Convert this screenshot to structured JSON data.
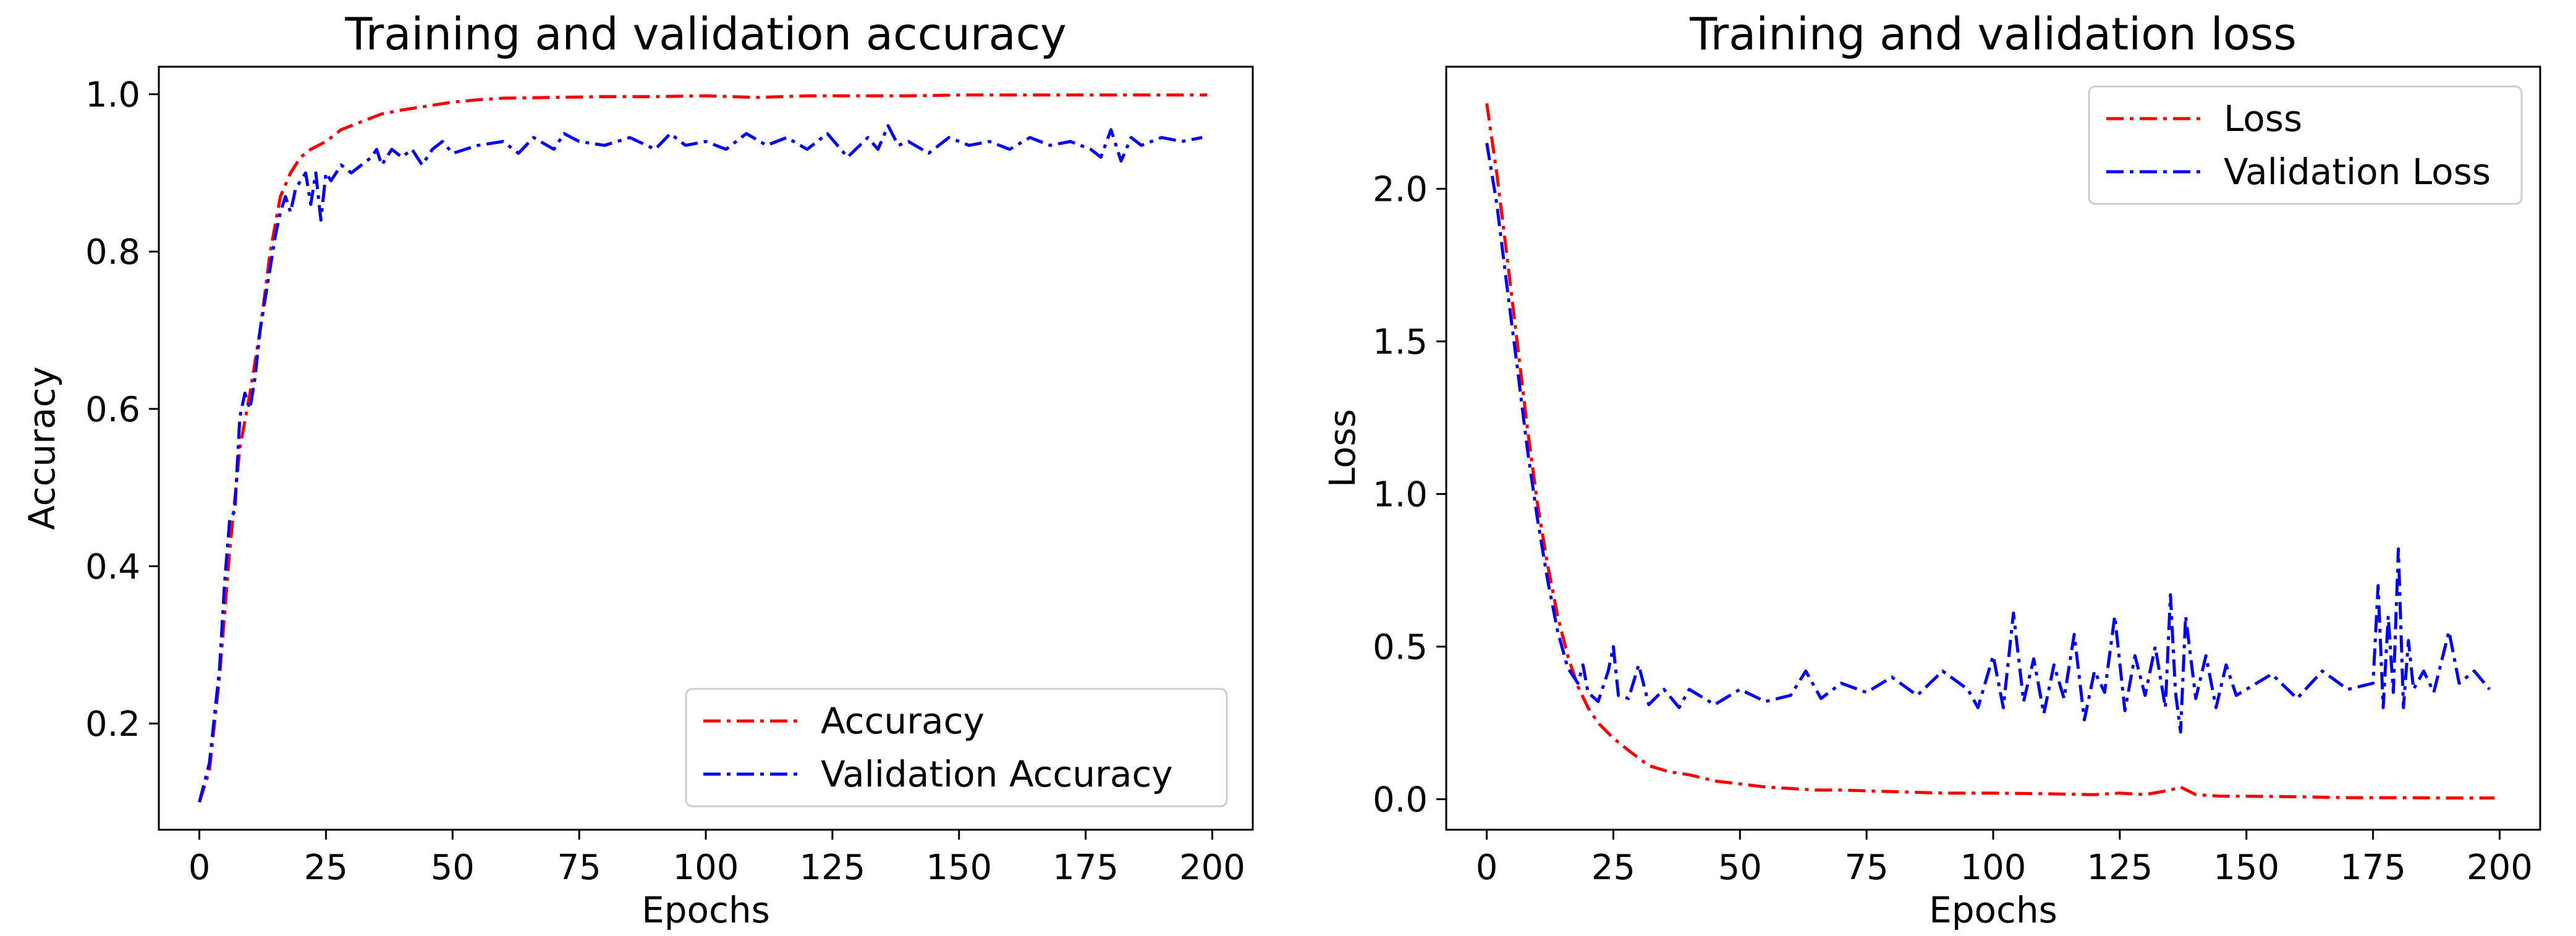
{
  "chart_data": [
    {
      "type": "line",
      "title": "Training and validation accuracy",
      "xlabel": "Epochs",
      "ylabel": "Accuracy",
      "xlim": [
        -8,
        208
      ],
      "ylim": [
        0.065,
        1.035
      ],
      "xticks": [
        0,
        25,
        50,
        75,
        100,
        125,
        150,
        175,
        200
      ],
      "xtick_labels": [
        "0",
        "25",
        "50",
        "75",
        "100",
        "125",
        "150",
        "175",
        "200"
      ],
      "yticks": [
        0.2,
        0.4,
        0.6,
        0.8,
        1.0
      ],
      "ytick_labels": [
        "0.2",
        "0.4",
        "0.6",
        "0.8",
        "1.0"
      ],
      "legend_position": "lower-right",
      "series": [
        {
          "name": "Accuracy",
          "color": "#ff0000",
          "style": "dashdot",
          "x": [
            0,
            2,
            4,
            6,
            8,
            10,
            12,
            14,
            16,
            18,
            20,
            22,
            25,
            28,
            32,
            36,
            40,
            45,
            50,
            55,
            60,
            70,
            80,
            90,
            100,
            110,
            120,
            130,
            140,
            150,
            160,
            170,
            180,
            190,
            199
          ],
          "y": [
            0.1,
            0.14,
            0.26,
            0.42,
            0.55,
            0.62,
            0.7,
            0.8,
            0.87,
            0.9,
            0.92,
            0.93,
            0.94,
            0.955,
            0.965,
            0.975,
            0.98,
            0.985,
            0.99,
            0.993,
            0.995,
            0.996,
            0.997,
            0.997,
            0.998,
            0.996,
            0.998,
            0.998,
            0.998,
            0.999,
            0.999,
            0.999,
            0.999,
            0.999,
            0.999
          ]
        },
        {
          "name": "Validation Accuracy",
          "color": "#0000ff",
          "style": "dashdot",
          "x": [
            0,
            2,
            4,
            5,
            6,
            7,
            8,
            9,
            10,
            11,
            12,
            13,
            14,
            15,
            16,
            17,
            18,
            19,
            20,
            21,
            22,
            23,
            24,
            25,
            26,
            28,
            30,
            32,
            34,
            35,
            36,
            38,
            40,
            42,
            44,
            46,
            48,
            50,
            55,
            60,
            63,
            66,
            70,
            72,
            75,
            80,
            85,
            90,
            93,
            96,
            100,
            104,
            108,
            112,
            116,
            120,
            124,
            128,
            132,
            134,
            136,
            138,
            140,
            144,
            148,
            152,
            156,
            160,
            164,
            168,
            172,
            176,
            178,
            180,
            182,
            184,
            186,
            190,
            194,
            198
          ],
          "y": [
            0.1,
            0.15,
            0.27,
            0.38,
            0.46,
            0.47,
            0.59,
            0.62,
            0.6,
            0.64,
            0.7,
            0.74,
            0.78,
            0.82,
            0.85,
            0.87,
            0.85,
            0.88,
            0.89,
            0.9,
            0.86,
            0.9,
            0.84,
            0.9,
            0.89,
            0.91,
            0.9,
            0.91,
            0.92,
            0.93,
            0.91,
            0.93,
            0.92,
            0.93,
            0.91,
            0.93,
            0.94,
            0.925,
            0.935,
            0.94,
            0.925,
            0.945,
            0.93,
            0.95,
            0.94,
            0.935,
            0.945,
            0.93,
            0.95,
            0.935,
            0.94,
            0.93,
            0.95,
            0.935,
            0.945,
            0.93,
            0.95,
            0.92,
            0.945,
            0.93,
            0.96,
            0.935,
            0.94,
            0.925,
            0.945,
            0.935,
            0.94,
            0.93,
            0.945,
            0.935,
            0.94,
            0.93,
            0.92,
            0.955,
            0.915,
            0.945,
            0.935,
            0.945,
            0.94,
            0.945
          ]
        }
      ]
    },
    {
      "type": "line",
      "title": "Training and validation loss",
      "xlabel": "Epochs",
      "ylabel": "Loss",
      "xlim": [
        -8,
        208
      ],
      "ylim": [
        -0.1,
        2.4
      ],
      "xticks": [
        0,
        25,
        50,
        75,
        100,
        125,
        150,
        175,
        200
      ],
      "xtick_labels": [
        "0",
        "25",
        "50",
        "75",
        "100",
        "125",
        "150",
        "175",
        "200"
      ],
      "yticks": [
        0.0,
        0.5,
        1.0,
        1.5,
        2.0
      ],
      "ytick_labels": [
        "0.0",
        "0.5",
        "1.0",
        "1.5",
        "2.0"
      ],
      "legend_position": "upper-right",
      "series": [
        {
          "name": "Loss",
          "color": "#ff0000",
          "style": "dashdot",
          "x": [
            0,
            2,
            4,
            6,
            8,
            10,
            12,
            14,
            16,
            18,
            20,
            22,
            25,
            28,
            32,
            36,
            40,
            45,
            50,
            55,
            60,
            65,
            70,
            80,
            90,
            100,
            110,
            120,
            125,
            130,
            135,
            137,
            140,
            145,
            150,
            160,
            170,
            180,
            190,
            199
          ],
          "y": [
            2.28,
            2.05,
            1.78,
            1.5,
            1.22,
            0.97,
            0.77,
            0.6,
            0.47,
            0.37,
            0.3,
            0.25,
            0.2,
            0.16,
            0.11,
            0.09,
            0.08,
            0.06,
            0.05,
            0.04,
            0.035,
            0.03,
            0.03,
            0.025,
            0.02,
            0.02,
            0.018,
            0.015,
            0.02,
            0.015,
            0.03,
            0.04,
            0.015,
            0.01,
            0.01,
            0.008,
            0.005,
            0.005,
            0.004,
            0.004
          ]
        },
        {
          "name": "Validation Loss",
          "color": "#0000ff",
          "style": "dashdot",
          "x": [
            0,
            2,
            4,
            6,
            8,
            10,
            12,
            14,
            16,
            18,
            19,
            20,
            22,
            24,
            25,
            26,
            28,
            30,
            32,
            35,
            38,
            40,
            45,
            50,
            55,
            60,
            63,
            66,
            70,
            75,
            80,
            85,
            90,
            95,
            97,
            100,
            102,
            104,
            106,
            108,
            110,
            112,
            114,
            116,
            118,
            120,
            122,
            124,
            126,
            128,
            130,
            132,
            134,
            135,
            136,
            137,
            138,
            140,
            142,
            144,
            146,
            148,
            150,
            155,
            160,
            165,
            170,
            175,
            176,
            177,
            178,
            179,
            180,
            181,
            182,
            183,
            185,
            187,
            190,
            192,
            195,
            198
          ],
          "y": [
            2.15,
            1.95,
            1.68,
            1.42,
            1.15,
            0.92,
            0.72,
            0.55,
            0.43,
            0.38,
            0.44,
            0.35,
            0.32,
            0.42,
            0.5,
            0.34,
            0.33,
            0.44,
            0.31,
            0.36,
            0.3,
            0.36,
            0.31,
            0.36,
            0.32,
            0.34,
            0.42,
            0.33,
            0.38,
            0.35,
            0.4,
            0.34,
            0.42,
            0.36,
            0.3,
            0.47,
            0.3,
            0.61,
            0.32,
            0.46,
            0.28,
            0.44,
            0.33,
            0.54,
            0.26,
            0.42,
            0.35,
            0.6,
            0.29,
            0.47,
            0.34,
            0.5,
            0.3,
            0.67,
            0.35,
            0.22,
            0.6,
            0.33,
            0.47,
            0.3,
            0.44,
            0.34,
            0.36,
            0.41,
            0.33,
            0.42,
            0.36,
            0.38,
            0.7,
            0.3,
            0.6,
            0.35,
            0.82,
            0.3,
            0.52,
            0.36,
            0.42,
            0.35,
            0.55,
            0.38,
            0.42,
            0.36
          ]
        }
      ]
    }
  ]
}
